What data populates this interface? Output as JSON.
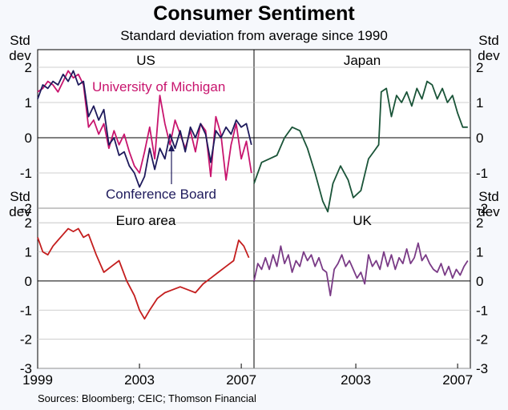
{
  "title": "Consumer Sentiment",
  "subtitle": "Standard deviation from average since 1990",
  "axis_label": "Std dev",
  "source": "Sources: Bloomberg; CEIC; Thomson Financial",
  "colors": {
    "michigan": "#c8156e",
    "conference": "#1e1a5c",
    "japan": "#1a5438",
    "euro": "#c41e1e",
    "uk": "#7a3b86",
    "zero": "#000000",
    "grid": "#bfbfbf"
  },
  "chart_data": [
    {
      "type": "line",
      "panel": "us",
      "title": "US",
      "ylim": [
        -2,
        2.5
      ],
      "yticks": [
        "2",
        "1",
        "0",
        "-1",
        "-2"
      ],
      "x_range": [
        1999,
        2007.5
      ],
      "series": [
        {
          "name": "University of Michigan",
          "color_key": "michigan",
          "x": [
            1999.0,
            1999.2,
            1999.4,
            1999.6,
            1999.8,
            2000.0,
            2000.2,
            2000.4,
            2000.6,
            2000.8,
            2001.0,
            2001.2,
            2001.4,
            2001.6,
            2001.8,
            2002.0,
            2002.2,
            2002.4,
            2002.6,
            2002.8,
            2003.0,
            2003.2,
            2003.4,
            2003.6,
            2003.8,
            2004.0,
            2004.2,
            2004.4,
            2004.6,
            2004.8,
            2005.0,
            2005.2,
            2005.4,
            2005.6,
            2005.8,
            2006.0,
            2006.2,
            2006.4,
            2006.6,
            2006.8,
            2007.0,
            2007.2,
            2007.4
          ],
          "y": [
            1.3,
            1.4,
            1.6,
            1.5,
            1.3,
            1.6,
            1.9,
            1.7,
            1.8,
            1.5,
            0.3,
            0.5,
            0.1,
            0.4,
            -0.3,
            0.2,
            -0.2,
            0.1,
            -0.4,
            -0.8,
            -1.0,
            -0.4,
            0.3,
            -0.6,
            1.2,
            0.4,
            -0.2,
            0.5,
            0.1,
            -0.3,
            0.2,
            -0.4,
            0.4,
            0.2,
            -1.1,
            0.6,
            0.1,
            -1.2,
            -0.2,
            0.4,
            -0.6,
            -0.1,
            -1.0
          ]
        },
        {
          "name": "Conference Board",
          "color_key": "conference",
          "x": [
            1999.0,
            1999.2,
            1999.4,
            1999.6,
            1999.8,
            2000.0,
            2000.2,
            2000.4,
            2000.6,
            2000.8,
            2001.0,
            2001.2,
            2001.4,
            2001.6,
            2001.8,
            2002.0,
            2002.2,
            2002.4,
            2002.6,
            2002.8,
            2003.0,
            2003.2,
            2003.4,
            2003.6,
            2003.8,
            2004.0,
            2004.2,
            2004.4,
            2004.6,
            2004.8,
            2005.0,
            2005.2,
            2005.4,
            2005.6,
            2005.8,
            2006.0,
            2006.2,
            2006.4,
            2006.6,
            2006.8,
            2007.0,
            2007.2,
            2007.4
          ],
          "y": [
            1.1,
            1.5,
            1.4,
            1.6,
            1.5,
            1.8,
            1.6,
            1.9,
            1.5,
            1.6,
            0.6,
            0.9,
            0.5,
            0.8,
            -0.2,
            0.0,
            -0.5,
            -0.4,
            -0.8,
            -1.0,
            -1.4,
            -1.1,
            -0.3,
            -0.9,
            -0.3,
            -0.6,
            0.1,
            -0.3,
            0.2,
            -0.4,
            0.3,
            0.0,
            0.4,
            0.1,
            -0.7,
            0.2,
            0.0,
            0.3,
            0.1,
            0.5,
            0.3,
            0.4,
            -0.2
          ]
        }
      ]
    },
    {
      "type": "line",
      "panel": "japan",
      "title": "Japan",
      "ylim": [
        -2,
        2.5
      ],
      "yticks": [
        "2",
        "1",
        "0",
        "-1",
        "-2"
      ],
      "x_range": [
        1999,
        2007.5
      ],
      "series": [
        {
          "name": "Japan",
          "color_key": "japan",
          "x": [
            1999.0,
            1999.3,
            1999.6,
            1999.9,
            2000.2,
            2000.5,
            2000.8,
            2001.1,
            2001.4,
            2001.7,
            2001.9,
            2002.1,
            2002.4,
            2002.7,
            2002.9,
            2003.2,
            2003.5,
            2003.7,
            2003.9,
            2004.0,
            2004.2,
            2004.4,
            2004.6,
            2004.8,
            2005.0,
            2005.2,
            2005.4,
            2005.6,
            2005.8,
            2006.0,
            2006.2,
            2006.4,
            2006.6,
            2006.8,
            2007.0,
            2007.2,
            2007.4
          ],
          "y": [
            -1.3,
            -0.7,
            -0.6,
            -0.5,
            0.0,
            0.3,
            0.2,
            -0.3,
            -1.0,
            -1.8,
            -2.1,
            -1.3,
            -0.8,
            -1.2,
            -1.7,
            -1.5,
            -0.6,
            -0.4,
            -0.2,
            1.3,
            1.4,
            0.6,
            1.2,
            1.0,
            1.3,
            0.9,
            1.4,
            1.1,
            1.6,
            1.5,
            1.1,
            1.4,
            1.0,
            1.2,
            0.7,
            0.3,
            0.3
          ]
        }
      ]
    },
    {
      "type": "line",
      "panel": "euro",
      "title": "Euro area",
      "ylim": [
        -3,
        2.5
      ],
      "yticks": [
        "2",
        "1",
        "0",
        "-1",
        "-2",
        "-3"
      ],
      "x_range": [
        1999,
        2007.5
      ],
      "xticks": [
        "1999",
        "2003",
        "2007"
      ],
      "series": [
        {
          "name": "Euro area",
          "color_key": "euro",
          "x": [
            1999.0,
            1999.2,
            1999.4,
            1999.6,
            1999.8,
            2000.0,
            2000.2,
            2000.4,
            2000.6,
            2000.8,
            2001.0,
            2001.3,
            2001.6,
            2001.9,
            2002.2,
            2002.5,
            2002.8,
            2003.0,
            2003.2,
            2003.4,
            2003.7,
            2004.0,
            2004.3,
            2004.6,
            2004.9,
            2005.2,
            2005.5,
            2005.8,
            2006.1,
            2006.4,
            2006.7,
            2006.9,
            2007.1,
            2007.3
          ],
          "y": [
            1.5,
            1.0,
            0.9,
            1.2,
            1.4,
            1.6,
            1.8,
            1.7,
            1.8,
            1.5,
            1.6,
            0.9,
            0.3,
            0.5,
            0.7,
            0.0,
            -0.5,
            -1.0,
            -1.3,
            -1.0,
            -0.6,
            -0.4,
            -0.3,
            -0.2,
            -0.3,
            -0.4,
            -0.1,
            0.1,
            0.3,
            0.5,
            0.7,
            1.4,
            1.2,
            0.8
          ]
        }
      ]
    },
    {
      "type": "line",
      "panel": "uk",
      "title": "UK",
      "ylim": [
        -3,
        2.5
      ],
      "yticks": [
        "2",
        "1",
        "0",
        "-1",
        "-2",
        "-3"
      ],
      "x_range": [
        1999,
        2007.5
      ],
      "xticks": [
        "2003",
        "2007"
      ],
      "series": [
        {
          "name": "UK",
          "color_key": "uk",
          "x": [
            1999.0,
            1999.15,
            1999.3,
            1999.45,
            1999.6,
            1999.75,
            1999.9,
            2000.05,
            2000.2,
            2000.35,
            2000.5,
            2000.65,
            2000.8,
            2000.95,
            2001.1,
            2001.25,
            2001.4,
            2001.55,
            2001.7,
            2001.85,
            2002.0,
            2002.15,
            2002.3,
            2002.45,
            2002.6,
            2002.75,
            2002.9,
            2003.05,
            2003.2,
            2003.35,
            2003.5,
            2003.65,
            2003.8,
            2003.95,
            2004.1,
            2004.25,
            2004.4,
            2004.55,
            2004.7,
            2004.85,
            2005.0,
            2005.15,
            2005.3,
            2005.45,
            2005.6,
            2005.75,
            2005.9,
            2006.05,
            2006.2,
            2006.35,
            2006.5,
            2006.65,
            2006.8,
            2006.95,
            2007.1,
            2007.25,
            2007.4
          ],
          "y": [
            0.0,
            0.6,
            0.4,
            0.8,
            0.4,
            0.9,
            0.5,
            1.2,
            0.6,
            0.9,
            0.3,
            0.7,
            0.5,
            1.0,
            0.7,
            0.9,
            0.5,
            0.8,
            0.4,
            0.3,
            -0.5,
            0.4,
            0.6,
            0.9,
            0.5,
            0.7,
            0.4,
            0.1,
            0.3,
            -0.1,
            0.9,
            0.5,
            0.7,
            0.4,
            1.0,
            0.5,
            0.9,
            0.4,
            0.8,
            0.6,
            1.1,
            0.6,
            0.8,
            1.3,
            0.7,
            0.9,
            0.6,
            0.4,
            0.3,
            0.6,
            0.2,
            0.5,
            0.1,
            0.4,
            0.2,
            0.5,
            0.7
          ]
        }
      ]
    }
  ],
  "legend": {
    "michigan": "University of Michigan",
    "conference": "Conference Board"
  }
}
